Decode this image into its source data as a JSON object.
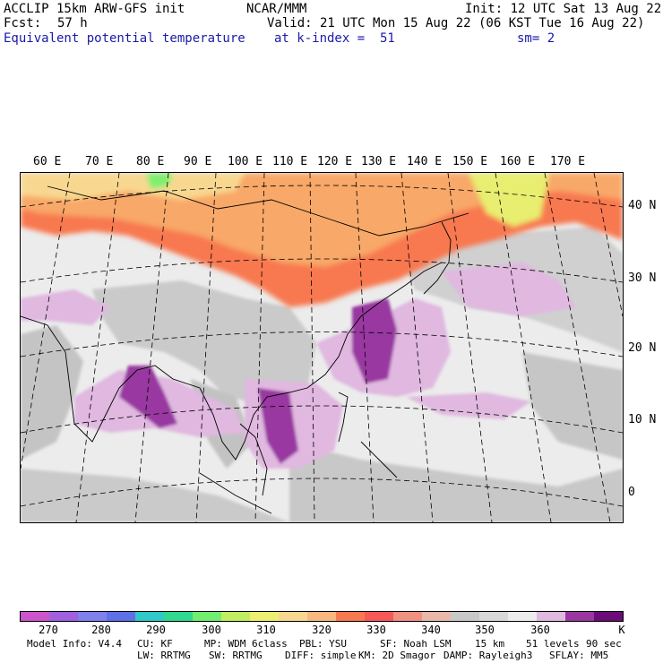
{
  "header": {
    "model": "ACCLIP 15km ARW-GFS init",
    "org": "NCAR/MMM",
    "init": "Init: 12 UTC Sat 13 Aug 22",
    "fcst_label": "Fcst:",
    "fcst_value": "57 h",
    "valid": "Valid: 21 UTC Mon 15 Aug 22 (06 KST Tue 16 Aug 22)",
    "field": "Equivalent potential temperature",
    "level": "at k-index =  51",
    "smooth": "sm= 2"
  },
  "lon_labels": [
    "60 E",
    "70 E",
    "80 E",
    "90 E",
    "100 E",
    "110 E",
    "120 E",
    "130 E",
    "140 E",
    "150 E",
    "160 E",
    "170 E"
  ],
  "lat_labels": [
    "40 N",
    "30 N",
    "20 N",
    "10 N",
    "0"
  ],
  "colorbar": {
    "colors": [
      "#cc55cc",
      "#a060e0",
      "#8080ee",
      "#6070e8",
      "#30c8c8",
      "#30d890",
      "#70ee70",
      "#c0ee60",
      "#eeee70",
      "#f8d890",
      "#f8b880",
      "#f87850",
      "#f85858",
      "#f09080",
      "#e8b8a8",
      "#c8c8c8",
      "#d8d8d8",
      "#ececec",
      "#e0b8e0",
      "#9838a0",
      "#6c0c78"
    ],
    "ticks": [
      "270",
      "280",
      "290",
      "300",
      "310",
      "320",
      "330",
      "340",
      "350",
      "360",
      "K"
    ]
  },
  "footer": {
    "line1": [
      "Model Info: V4.4",
      "CU: KF",
      "MP: WDM 6class",
      "PBL: YSU",
      "SF: Noah LSM",
      "15 km",
      "51 levels",
      "90 sec"
    ],
    "line2": [
      "LW: RRTMG",
      "SW: RRTMG",
      "DIFF: simple",
      "KM: 2D Smagor",
      "DAMP: Rayleigh3",
      "SFLAY: MM5"
    ]
  }
}
